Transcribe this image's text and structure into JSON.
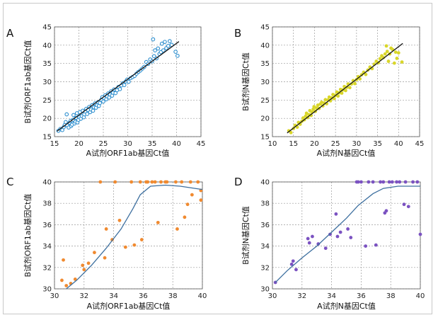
{
  "figure": {
    "border_color": "#c8c8c8",
    "grid_color": "#9a9a9a"
  },
  "chart_data": [
    {
      "panel_label": "A",
      "type": "scatter",
      "xlabel": "A试剂ORF1ab基因Ct值",
      "ylabel": "B试剂ORF1ab基因Ct值",
      "xlim": [
        15,
        45
      ],
      "ylim": [
        15,
        45
      ],
      "xticks": [
        15,
        20,
        25,
        30,
        35,
        40,
        45
      ],
      "yticks": [
        15,
        20,
        25,
        30,
        35,
        40,
        45
      ],
      "grid": true,
      "marker": "hollow-circle",
      "point_color": "#2e8fcf",
      "line_color": "#1a1a1a",
      "fit_line": [
        [
          15.5,
          16.5
        ],
        [
          40.5,
          41.0
        ]
      ],
      "points": [
        [
          15.8,
          16.6
        ],
        [
          16.2,
          17.1
        ],
        [
          16.6,
          16.8
        ],
        [
          16.9,
          17.6
        ],
        [
          17.1,
          18.2
        ],
        [
          17.3,
          19.0
        ],
        [
          17.5,
          21.1
        ],
        [
          17.6,
          18.1
        ],
        [
          17.9,
          17.5
        ],
        [
          18.1,
          18.8
        ],
        [
          18.3,
          19.3
        ],
        [
          18.4,
          17.9
        ],
        [
          18.6,
          18.3
        ],
        [
          18.8,
          19.6
        ],
        [
          18.9,
          20.9
        ],
        [
          19.1,
          18.6
        ],
        [
          19.3,
          19.1
        ],
        [
          19.4,
          20.1
        ],
        [
          19.6,
          21.4
        ],
        [
          19.7,
          18.9
        ],
        [
          19.9,
          19.6
        ],
        [
          20.1,
          20.3
        ],
        [
          20.2,
          21.7
        ],
        [
          20.4,
          19.9
        ],
        [
          20.6,
          20.6
        ],
        [
          20.8,
          22.1
        ],
        [
          21.0,
          20.3
        ],
        [
          21.1,
          21.1
        ],
        [
          21.3,
          21.9
        ],
        [
          21.5,
          22.6
        ],
        [
          21.7,
          21.2
        ],
        [
          21.9,
          22.3
        ],
        [
          22.1,
          23.1
        ],
        [
          22.3,
          21.7
        ],
        [
          22.5,
          22.4
        ],
        [
          22.7,
          23.6
        ],
        [
          22.9,
          22.1
        ],
        [
          23.1,
          23.0
        ],
        [
          23.3,
          24.1
        ],
        [
          23.5,
          22.9
        ],
        [
          23.7,
          23.6
        ],
        [
          23.9,
          24.4
        ],
        [
          24.1,
          23.4
        ],
        [
          24.3,
          24.2
        ],
        [
          24.6,
          25.1
        ],
        [
          24.8,
          25.8
        ],
        [
          25.0,
          24.6
        ],
        [
          25.2,
          25.5
        ],
        [
          25.4,
          26.3
        ],
        [
          25.6,
          25.2
        ],
        [
          25.8,
          26.0
        ],
        [
          26.0,
          26.8
        ],
        [
          26.2,
          25.7
        ],
        [
          26.4,
          26.5
        ],
        [
          26.6,
          27.4
        ],
        [
          26.8,
          26.2
        ],
        [
          27.0,
          27.0
        ],
        [
          27.2,
          27.9
        ],
        [
          27.5,
          26.9
        ],
        [
          27.8,
          27.7
        ],
        [
          28.1,
          28.6
        ],
        [
          28.4,
          28.0
        ],
        [
          28.7,
          29.0
        ],
        [
          29.0,
          29.6
        ],
        [
          29.3,
          29.1
        ],
        [
          29.6,
          30.1
        ],
        [
          29.9,
          30.6
        ],
        [
          30.2,
          30.0
        ],
        [
          30.6,
          31.0
        ],
        [
          31.0,
          31.3
        ],
        [
          31.4,
          31.6
        ],
        [
          31.8,
          32.2
        ],
        [
          32.2,
          32.7
        ],
        [
          32.6,
          33.1
        ],
        [
          33.0,
          33.6
        ],
        [
          33.4,
          34.1
        ],
        [
          33.8,
          35.4
        ],
        [
          34.2,
          34.9
        ],
        [
          34.6,
          36.1
        ],
        [
          35.0,
          35.6
        ],
        [
          35.2,
          41.6
        ],
        [
          35.4,
          37.0
        ],
        [
          35.6,
          38.6
        ],
        [
          35.9,
          36.4
        ],
        [
          36.2,
          39.1
        ],
        [
          36.5,
          37.6
        ],
        [
          36.8,
          38.1
        ],
        [
          37.0,
          40.4
        ],
        [
          37.3,
          38.6
        ],
        [
          37.6,
          40.9
        ],
        [
          37.9,
          39.2
        ],
        [
          38.3,
          39.8
        ],
        [
          38.6,
          41.1
        ],
        [
          39.0,
          40.1
        ],
        [
          39.8,
          38.2
        ],
        [
          40.2,
          37.1
        ]
      ]
    },
    {
      "panel_label": "B",
      "type": "scatter",
      "xlabel": "A试剂N基因Ct值",
      "ylabel": "B试剂N基因Ct值",
      "xlim": [
        10,
        45
      ],
      "ylim": [
        15,
        45
      ],
      "xticks": [
        10,
        15,
        20,
        25,
        30,
        35,
        40,
        45
      ],
      "yticks": [
        15,
        20,
        25,
        30,
        35,
        40,
        45
      ],
      "grid": true,
      "marker": "filled-circle",
      "point_color": "#d9d62a",
      "line_color": "#1a1a1a",
      "fit_line": [
        [
          13.5,
          16.0
        ],
        [
          41.0,
          40.5
        ]
      ],
      "points": [
        [
          13.9,
          16.6
        ],
        [
          14.4,
          16.1
        ],
        [
          15.0,
          17.2
        ],
        [
          15.4,
          18.1
        ],
        [
          15.9,
          17.6
        ],
        [
          16.2,
          18.9
        ],
        [
          16.6,
          18.4
        ],
        [
          17.0,
          19.2
        ],
        [
          17.3,
          20.1
        ],
        [
          17.6,
          19.6
        ],
        [
          17.9,
          20.6
        ],
        [
          18.1,
          21.4
        ],
        [
          18.4,
          20.2
        ],
        [
          18.7,
          21.0
        ],
        [
          18.9,
          22.1
        ],
        [
          19.2,
          20.8
        ],
        [
          19.4,
          21.7
        ],
        [
          19.7,
          22.5
        ],
        [
          19.9,
          23.2
        ],
        [
          20.2,
          21.9
        ],
        [
          20.5,
          22.8
        ],
        [
          20.8,
          23.6
        ],
        [
          21.1,
          22.7
        ],
        [
          21.4,
          23.9
        ],
        [
          21.7,
          24.4
        ],
        [
          22.0,
          23.4
        ],
        [
          22.3,
          24.2
        ],
        [
          22.6,
          25.1
        ],
        [
          22.9,
          24.0
        ],
        [
          23.2,
          25.0
        ],
        [
          23.5,
          25.8
        ],
        [
          23.8,
          24.8
        ],
        [
          24.1,
          25.6
        ],
        [
          24.4,
          26.5
        ],
        [
          24.7,
          25.4
        ],
        [
          25.0,
          26.3
        ],
        [
          25.3,
          27.2
        ],
        [
          25.6,
          26.1
        ],
        [
          25.9,
          27.0
        ],
        [
          26.2,
          27.9
        ],
        [
          26.5,
          26.9
        ],
        [
          26.8,
          27.8
        ],
        [
          27.1,
          28.7
        ],
        [
          27.4,
          27.6
        ],
        [
          27.7,
          28.5
        ],
        [
          28.0,
          29.4
        ],
        [
          28.4,
          28.4
        ],
        [
          28.8,
          29.4
        ],
        [
          29.2,
          30.3
        ],
        [
          29.6,
          29.5
        ],
        [
          30.0,
          30.6
        ],
        [
          30.4,
          31.4
        ],
        [
          30.8,
          30.8
        ],
        [
          31.2,
          31.9
        ],
        [
          31.7,
          32.6
        ],
        [
          32.2,
          32.0
        ],
        [
          32.7,
          33.2
        ],
        [
          33.2,
          34.0
        ],
        [
          33.7,
          33.6
        ],
        [
          34.2,
          34.8
        ],
        [
          34.7,
          35.6
        ],
        [
          35.2,
          35.2
        ],
        [
          35.6,
          36.3
        ],
        [
          36.0,
          37.1
        ],
        [
          36.4,
          36.6
        ],
        [
          36.8,
          37.6
        ],
        [
          37.1,
          39.8
        ],
        [
          37.3,
          38.3
        ],
        [
          37.6,
          35.6
        ],
        [
          37.9,
          37.6
        ],
        [
          38.2,
          39.2
        ],
        [
          38.6,
          38.8
        ],
        [
          39.0,
          35.1
        ],
        [
          39.3,
          38.1
        ],
        [
          39.6,
          36.4
        ],
        [
          40.0,
          37.9
        ],
        [
          40.8,
          35.4
        ]
      ]
    },
    {
      "panel_label": "C",
      "type": "scatter",
      "xlabel": "A试剂ORF1ab基因Ct值",
      "ylabel": "B试剂ORF1ab基因Ct值",
      "xlim": [
        30,
        40
      ],
      "ylim": [
        30,
        40
      ],
      "xticks": [
        30,
        32,
        34,
        36,
        38,
        40
      ],
      "yticks": [
        30,
        32,
        34,
        36,
        38,
        40
      ],
      "grid": true,
      "marker": "filled-circle",
      "point_color": "#f08a30",
      "line_color": "#3d6f9f",
      "fit_curve": [
        [
          30.8,
          30.0
        ],
        [
          31.5,
          30.8
        ],
        [
          32.5,
          32.2
        ],
        [
          33.5,
          33.8
        ],
        [
          34.5,
          35.6
        ],
        [
          35.3,
          37.5
        ],
        [
          35.8,
          38.8
        ],
        [
          36.5,
          39.6
        ],
        [
          37.5,
          39.7
        ],
        [
          38.5,
          39.6
        ],
        [
          39.5,
          39.4
        ],
        [
          40.0,
          39.3
        ]
      ],
      "points": [
        [
          30.5,
          30.8
        ],
        [
          30.6,
          32.7
        ],
        [
          30.8,
          30.3
        ],
        [
          31.1,
          30.5
        ],
        [
          31.4,
          30.9
        ],
        [
          31.9,
          32.2
        ],
        [
          32.0,
          31.8
        ],
        [
          32.3,
          32.4
        ],
        [
          32.7,
          33.4
        ],
        [
          33.1,
          40.0
        ],
        [
          33.4,
          32.9
        ],
        [
          33.5,
          35.6
        ],
        [
          33.9,
          34.6
        ],
        [
          34.1,
          40.0
        ],
        [
          34.4,
          36.4
        ],
        [
          34.8,
          33.9
        ],
        [
          35.2,
          40.0
        ],
        [
          35.4,
          34.1
        ],
        [
          35.8,
          40.0
        ],
        [
          35.9,
          34.6
        ],
        [
          36.2,
          40.0
        ],
        [
          36.3,
          40.0
        ],
        [
          36.6,
          40.0
        ],
        [
          36.8,
          40.0
        ],
        [
          37.0,
          36.2
        ],
        [
          37.2,
          40.0
        ],
        [
          37.5,
          40.0
        ],
        [
          37.6,
          40.0
        ],
        [
          38.2,
          40.0
        ],
        [
          38.3,
          35.6
        ],
        [
          38.6,
          40.0
        ],
        [
          38.8,
          36.7
        ],
        [
          39.0,
          37.9
        ],
        [
          39.2,
          40.0
        ],
        [
          39.3,
          38.8
        ],
        [
          39.7,
          40.0
        ],
        [
          39.9,
          39.2
        ],
        [
          39.9,
          38.3
        ]
      ]
    },
    {
      "panel_label": "D",
      "type": "scatter",
      "xlabel": "A试剂N基因Ct值",
      "ylabel": "B试剂N基因Ct值",
      "xlim": [
        30,
        40
      ],
      "ylim": [
        30,
        40
      ],
      "xticks": [
        30,
        32,
        34,
        36,
        38,
        40
      ],
      "yticks": [
        30,
        32,
        34,
        36,
        38,
        40
      ],
      "grid": true,
      "marker": "filled-circle",
      "point_color": "#7b52c1",
      "line_color": "#3d6f9f",
      "fit_curve": [
        [
          30.2,
          30.6
        ],
        [
          31.0,
          31.7
        ],
        [
          32.0,
          32.9
        ],
        [
          33.0,
          34.0
        ],
        [
          34.0,
          35.3
        ],
        [
          35.0,
          36.6
        ],
        [
          35.8,
          37.8
        ],
        [
          36.8,
          38.9
        ],
        [
          37.5,
          39.4
        ],
        [
          38.5,
          39.6
        ],
        [
          40.0,
          39.6
        ]
      ],
      "points": [
        [
          30.2,
          30.6
        ],
        [
          31.3,
          32.3
        ],
        [
          31.4,
          32.6
        ],
        [
          31.6,
          31.8
        ],
        [
          32.4,
          34.7
        ],
        [
          32.5,
          34.3
        ],
        [
          32.7,
          34.9
        ],
        [
          33.1,
          34.2
        ],
        [
          33.6,
          33.8
        ],
        [
          33.9,
          35.1
        ],
        [
          34.3,
          37.0
        ],
        [
          34.4,
          34.9
        ],
        [
          34.6,
          35.3
        ],
        [
          35.1,
          35.6
        ],
        [
          35.3,
          34.8
        ],
        [
          35.7,
          40.0
        ],
        [
          35.8,
          40.0
        ],
        [
          36.0,
          40.0
        ],
        [
          36.3,
          34.0
        ],
        [
          36.5,
          40.0
        ],
        [
          36.8,
          40.0
        ],
        [
          37.0,
          34.1
        ],
        [
          37.3,
          40.0
        ],
        [
          37.5,
          40.0
        ],
        [
          37.6,
          37.1
        ],
        [
          37.7,
          37.3
        ],
        [
          37.9,
          40.0
        ],
        [
          38.1,
          40.0
        ],
        [
          38.4,
          40.0
        ],
        [
          38.6,
          40.0
        ],
        [
          38.9,
          37.9
        ],
        [
          39.0,
          40.0
        ],
        [
          39.2,
          37.7
        ],
        [
          39.5,
          40.0
        ],
        [
          39.8,
          40.0
        ],
        [
          40.0,
          35.1
        ]
      ]
    }
  ]
}
